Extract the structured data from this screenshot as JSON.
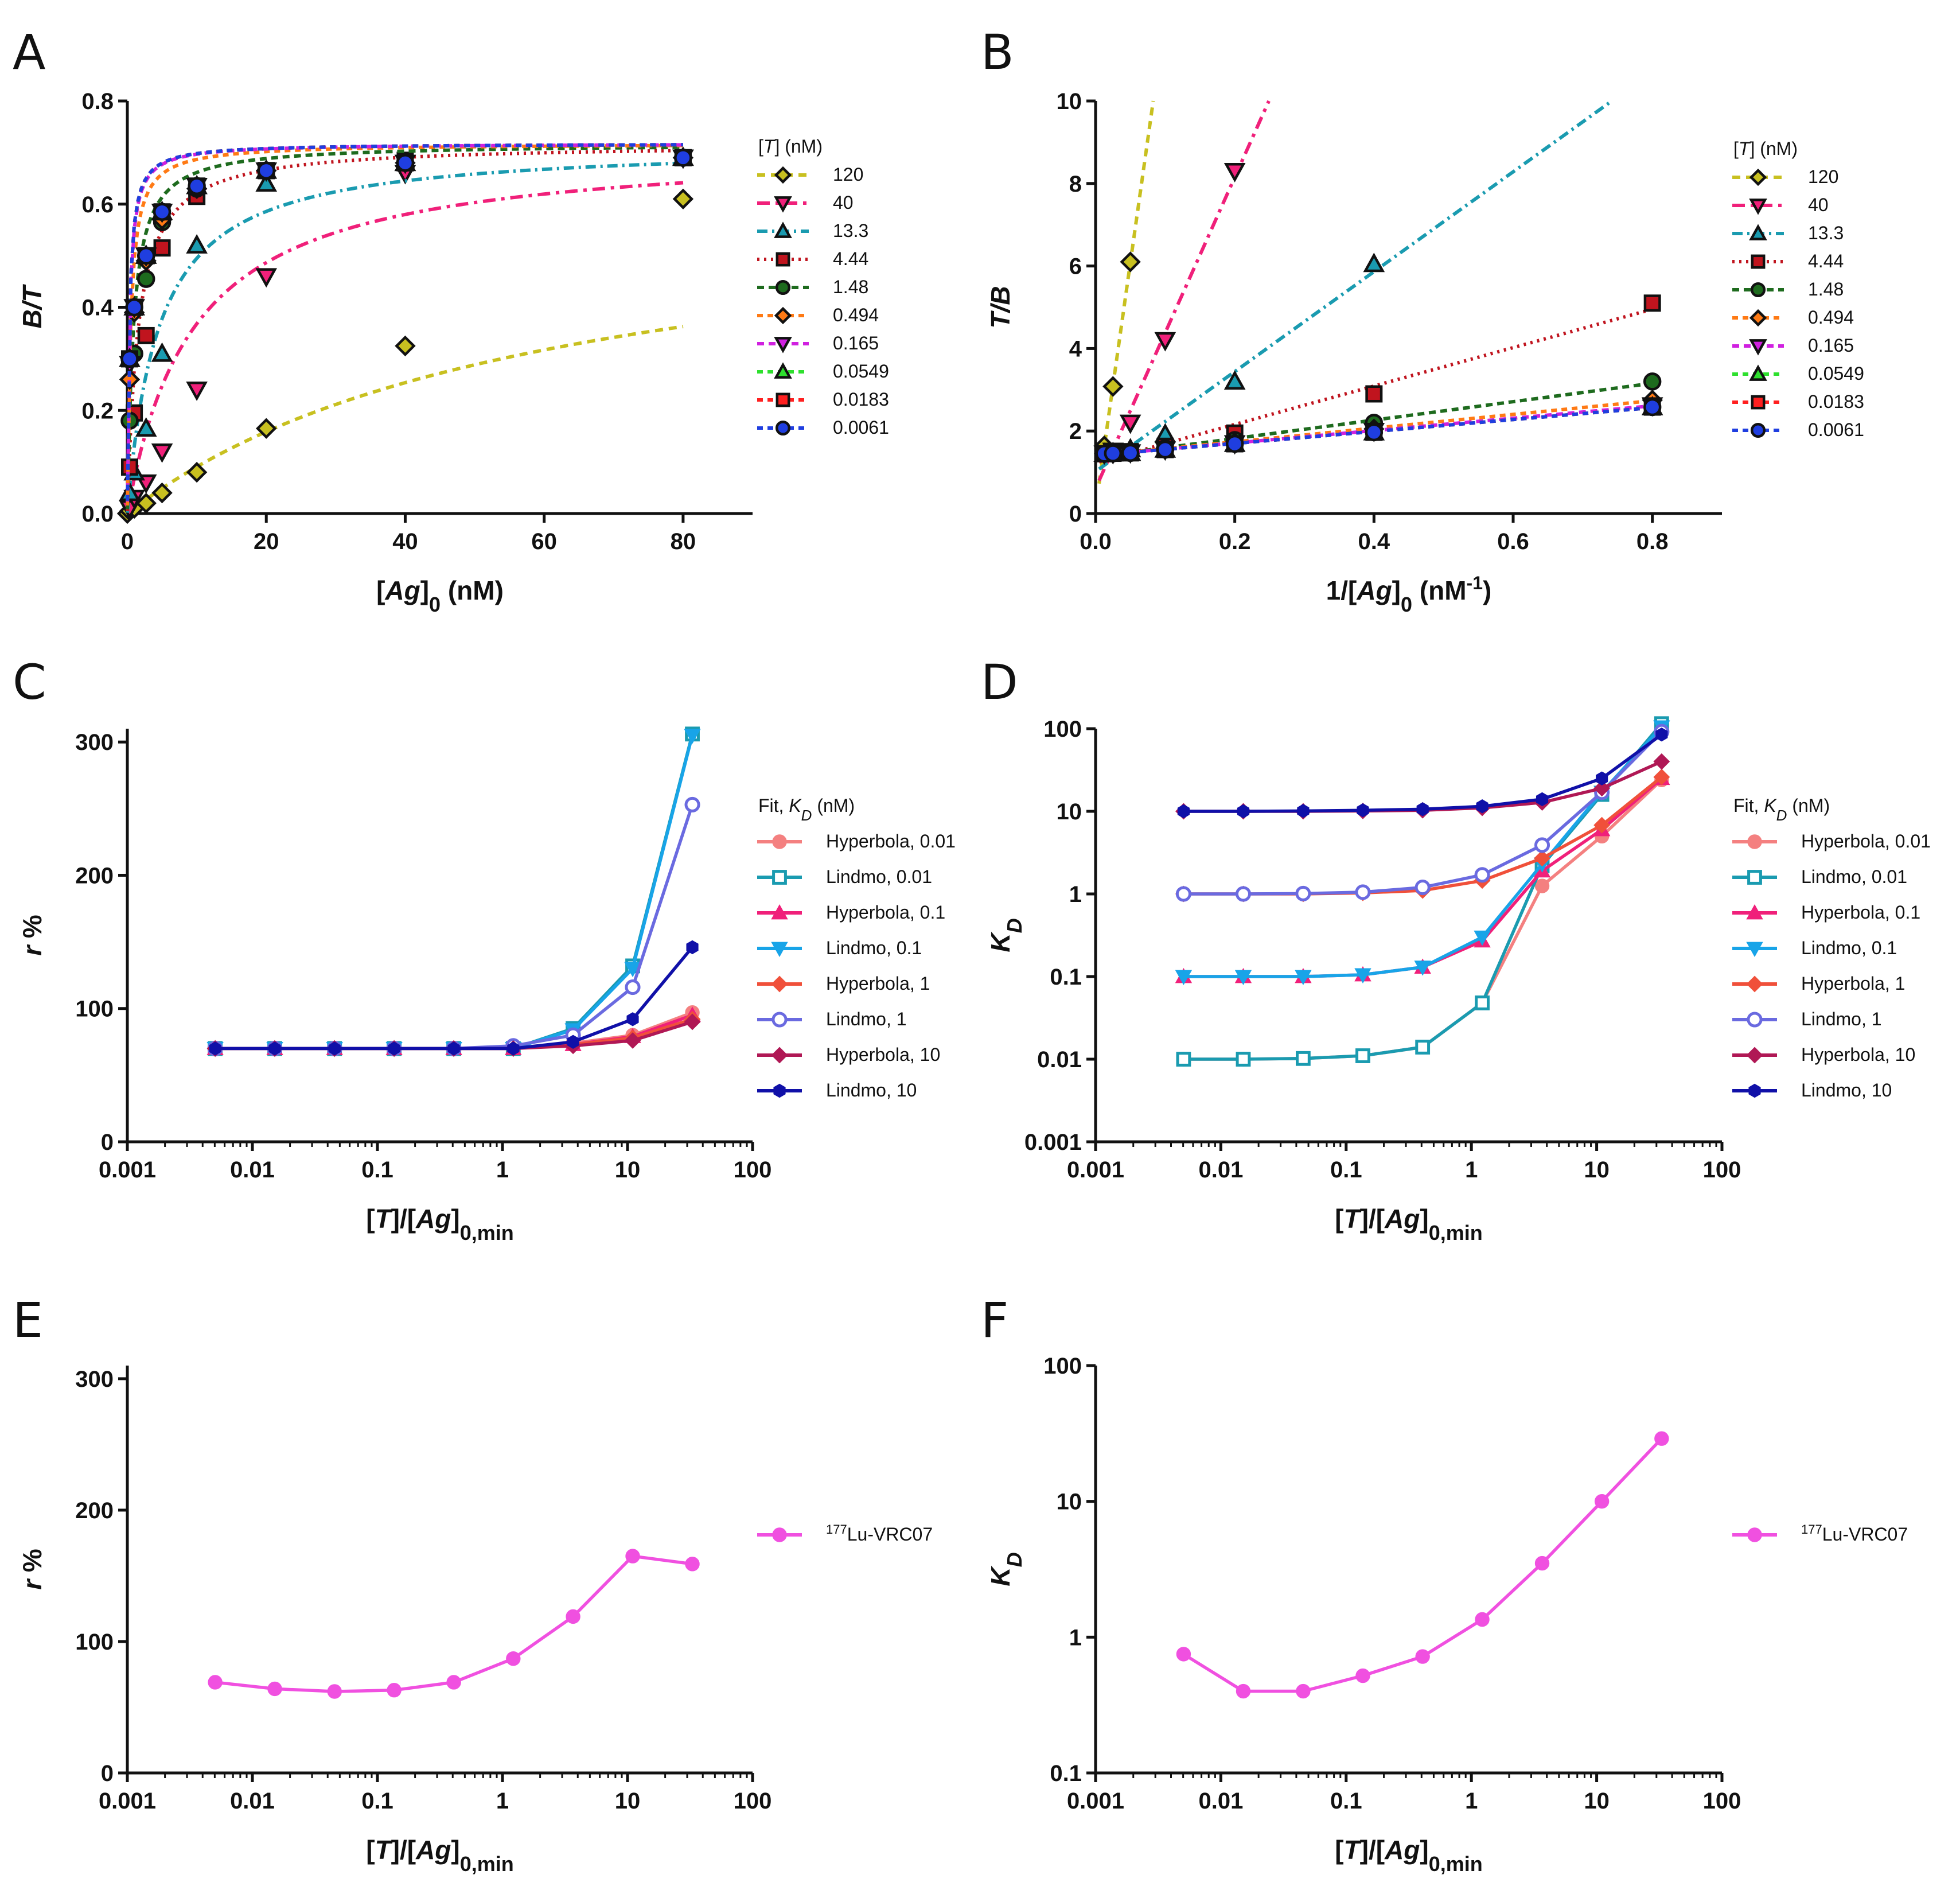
{
  "chart_data": [
    {
      "panel": "A",
      "type": "scatter",
      "xlabel": "[Ag]0 (nM)",
      "ylabel": "B/T",
      "xlim": [
        0,
        90
      ],
      "ylim": [
        0,
        0.8
      ],
      "xticks": [
        0,
        20,
        40,
        60,
        80
      ],
      "yticks": [
        0.0,
        0.2,
        0.4,
        0.6,
        0.8
      ],
      "tick_labels_x": [
        "0",
        "20",
        "40",
        "60",
        "80"
      ],
      "tick_labels_y": [
        "0.0",
        "0.2",
        "0.4",
        "0.6",
        "0.8"
      ],
      "legend_title": "[T] (nM)",
      "series": [
        {
          "name": "120",
          "color": "#c8c020",
          "marker": "diamond",
          "x": [
            0,
            0.33,
            1,
            2.7,
            5,
            10,
            20,
            40,
            80
          ],
          "values": [
            0.0,
            0.005,
            0.01,
            0.02,
            0.04,
            0.08,
            0.165,
            0.325,
            0.61
          ]
        },
        {
          "name": "40",
          "color": "#f0207a",
          "marker": "triangle-down",
          "x": [
            0.33,
            1,
            2.7,
            5,
            10,
            20,
            40,
            80
          ],
          "values": [
            0.01,
            0.03,
            0.06,
            0.12,
            0.24,
            0.46,
            0.66,
            0.69
          ]
        },
        {
          "name": "13.3",
          "color": "#1a9bb0",
          "marker": "triangle-up",
          "x": [
            0.33,
            1,
            2.7,
            5,
            10,
            20,
            40,
            80
          ],
          "values": [
            0.04,
            0.08,
            0.165,
            0.31,
            0.52,
            0.64,
            0.68,
            0.69
          ]
        },
        {
          "name": "4.44",
          "color": "#c0141e",
          "marker": "square",
          "x": [
            0.33,
            1,
            2.7,
            5,
            10,
            20,
            40,
            80
          ],
          "values": [
            0.09,
            0.195,
            0.345,
            0.515,
            0.615,
            0.665,
            0.685,
            0.69
          ]
        },
        {
          "name": "1.48",
          "color": "#1e6b1e",
          "marker": "circle",
          "x": [
            0.33,
            1,
            2.7,
            5,
            10,
            20,
            40,
            80
          ],
          "values": [
            0.18,
            0.31,
            0.455,
            0.565,
            0.63,
            0.665,
            0.68,
            0.69
          ]
        },
        {
          "name": "0.494",
          "color": "#ff7a14",
          "marker": "diamond",
          "x": [
            0.33,
            1,
            2.7,
            5,
            10,
            20,
            40,
            80
          ],
          "values": [
            0.26,
            0.39,
            0.49,
            0.57,
            0.63,
            0.665,
            0.68,
            0.69
          ]
        },
        {
          "name": "0.165",
          "color": "#d020e0",
          "marker": "triangle-down",
          "x": [
            0.33,
            1,
            2.7,
            5,
            10,
            20,
            40,
            80
          ],
          "values": [
            0.29,
            0.4,
            0.5,
            0.585,
            0.635,
            0.665,
            0.68,
            0.69
          ]
        },
        {
          "name": "0.0549",
          "color": "#2ee02e",
          "marker": "triangle-up",
          "x": [
            0.33,
            1,
            2.7,
            5,
            10,
            20,
            40,
            80
          ],
          "values": [
            0.3,
            0.4,
            0.5,
            0.585,
            0.635,
            0.665,
            0.68,
            0.69
          ]
        },
        {
          "name": "0.0183",
          "color": "#ff2020",
          "marker": "square",
          "x": [
            0.33,
            1,
            2.7,
            5,
            10,
            20,
            40,
            80
          ],
          "values": [
            0.3,
            0.4,
            0.5,
            0.585,
            0.635,
            0.665,
            0.68,
            0.69
          ]
        },
        {
          "name": "0.0061",
          "color": "#1f3ee0",
          "marker": "circle",
          "x": [
            0.33,
            1,
            2.7,
            5,
            10,
            20,
            40,
            80
          ],
          "values": [
            0.3,
            0.4,
            0.5,
            0.585,
            0.635,
            0.665,
            0.68,
            0.69
          ]
        }
      ]
    },
    {
      "panel": "B",
      "type": "scatter",
      "xlabel": "1/[Ag]0 (nM-1)",
      "ylabel": "T/B",
      "xlim": [
        0,
        0.9
      ],
      "ylim": [
        0,
        10
      ],
      "xticks": [
        0,
        0.2,
        0.4,
        0.6,
        0.8
      ],
      "yticks": [
        0,
        2,
        4,
        6,
        8,
        10
      ],
      "tick_labels_x": [
        "0.0",
        "0.2",
        "0.4",
        "0.6",
        "0.8"
      ],
      "tick_labels_y": [
        "0",
        "2",
        "4",
        "6",
        "8",
        "10"
      ],
      "legend_title": "[T] (nM)",
      "series": [
        {
          "name": "120",
          "color": "#c8c020",
          "marker": "diamond",
          "x": [
            0.0125,
            0.025,
            0.05
          ],
          "values": [
            1.64,
            3.08,
            6.1
          ]
        },
        {
          "name": "40",
          "color": "#f0207a",
          "marker": "triangle-down",
          "x": [
            0.0125,
            0.025,
            0.05,
            0.1,
            0.2
          ],
          "values": [
            1.45,
            1.52,
            2.2,
            4.2,
            8.3
          ]
        },
        {
          "name": "13.3",
          "color": "#1a9bb0",
          "marker": "triangle-up",
          "x": [
            0.0125,
            0.025,
            0.05,
            0.1,
            0.2,
            0.4
          ],
          "values": [
            1.45,
            1.47,
            1.56,
            1.92,
            3.2,
            6.05
          ]
        },
        {
          "name": "4.44",
          "color": "#c0141e",
          "marker": "square",
          "x": [
            0.0125,
            0.025,
            0.05,
            0.1,
            0.2,
            0.4,
            0.8
          ],
          "values": [
            1.45,
            1.46,
            1.5,
            1.63,
            1.95,
            2.9,
            5.1
          ]
        },
        {
          "name": "1.48",
          "color": "#1e6b1e",
          "marker": "circle",
          "x": [
            0.0125,
            0.025,
            0.05,
            0.1,
            0.2,
            0.4,
            0.8
          ],
          "values": [
            1.45,
            1.46,
            1.48,
            1.58,
            1.78,
            2.2,
            3.2
          ]
        },
        {
          "name": "0.494",
          "color": "#ff7a14",
          "marker": "diamond",
          "x": [
            0.0125,
            0.025,
            0.05,
            0.1,
            0.2,
            0.4,
            0.8
          ],
          "values": [
            1.45,
            1.46,
            1.48,
            1.56,
            1.72,
            2.05,
            2.75
          ]
        },
        {
          "name": "0.165",
          "color": "#d020e0",
          "marker": "triangle-down",
          "x": [
            0.0125,
            0.025,
            0.05,
            0.1,
            0.2,
            0.4,
            0.8
          ],
          "values": [
            1.45,
            1.46,
            1.48,
            1.55,
            1.7,
            2.0,
            2.62
          ]
        },
        {
          "name": "0.0549",
          "color": "#2ee02e",
          "marker": "triangle-up",
          "x": [
            0.0125,
            0.025,
            0.05,
            0.1,
            0.2,
            0.4,
            0.8
          ],
          "values": [
            1.45,
            1.46,
            1.47,
            1.55,
            1.69,
            1.97,
            2.58
          ]
        },
        {
          "name": "0.0183",
          "color": "#ff2020",
          "marker": "square",
          "x": [
            0.0125,
            0.025,
            0.05,
            0.1,
            0.2,
            0.4,
            0.8
          ],
          "values": [
            1.45,
            1.46,
            1.47,
            1.55,
            1.69,
            1.97,
            2.58
          ]
        },
        {
          "name": "0.0061",
          "color": "#1f3ee0",
          "marker": "circle",
          "x": [
            0.0125,
            0.025,
            0.05,
            0.1,
            0.2,
            0.4,
            0.8
          ],
          "values": [
            1.45,
            1.46,
            1.47,
            1.55,
            1.69,
            1.97,
            2.58
          ]
        }
      ]
    },
    {
      "panel": "C",
      "type": "line",
      "xlabel": "[T]/[Ag]0,min",
      "ylabel": "r %",
      "xscale": "log",
      "xlim": [
        0.001,
        100
      ],
      "ylim": [
        0,
        310
      ],
      "xticks": [
        0.001,
        0.01,
        0.1,
        1,
        10,
        100
      ],
      "yticks": [
        0,
        100,
        200,
        300
      ],
      "tick_labels_x": [
        "0.001",
        "0.01",
        "0.1",
        "1",
        "10",
        "100"
      ],
      "tick_labels_y": [
        "0",
        "100",
        "200",
        "300"
      ],
      "legend_title": "Fit, KD (nM)",
      "x": [
        0.00504,
        0.0151,
        0.0454,
        0.136,
        0.408,
        1.22,
        3.67,
        11.0,
        33.0
      ],
      "series": [
        {
          "name": "Hyperbola, 0.01",
          "color": "#f48080",
          "marker": "circle",
          "values": [
            70,
            70,
            70,
            70,
            70,
            70,
            74,
            80,
            97
          ]
        },
        {
          "name": "Lindmo, 0.01",
          "color": "#1a9bb0",
          "marker": "square-open",
          "values": [
            70,
            70,
            70,
            70,
            70,
            70,
            85,
            132,
            306
          ]
        },
        {
          "name": "Hyperbola, 0.1",
          "color": "#f0207a",
          "marker": "triangle-up",
          "values": [
            70,
            70,
            70,
            70,
            70,
            70,
            73,
            79,
            95
          ]
        },
        {
          "name": "Lindmo, 0.1",
          "color": "#18a4e8",
          "marker": "triangle-down",
          "values": [
            70,
            70,
            70,
            70,
            70,
            70,
            84,
            130,
            305
          ]
        },
        {
          "name": "Hyperbola, 1",
          "color": "#f0503a",
          "marker": "diamond",
          "values": [
            70,
            70,
            70,
            70,
            70,
            70,
            73,
            78,
            92
          ]
        },
        {
          "name": "Lindmo, 1",
          "color": "#6a6ae0",
          "marker": "circle-open",
          "values": [
            70,
            70,
            70,
            70,
            70,
            72,
            80,
            116,
            253
          ]
        },
        {
          "name": "Hyperbola, 10",
          "color": "#b01855",
          "marker": "diamond",
          "values": [
            70,
            70,
            70,
            70,
            70,
            70,
            72,
            76,
            90
          ]
        },
        {
          "name": "Lindmo, 10",
          "color": "#1010a8",
          "marker": "hexagon",
          "values": [
            70,
            70,
            70,
            70,
            70,
            70,
            75,
            92,
            146
          ]
        }
      ]
    },
    {
      "panel": "D",
      "type": "line",
      "xlabel": "[T]/[Ag]0,min",
      "ylabel": "KD",
      "xscale": "log",
      "yscale": "log",
      "xlim": [
        0.001,
        100
      ],
      "ylim": [
        0.001,
        100
      ],
      "xticks": [
        0.001,
        0.01,
        0.1,
        1,
        10,
        100
      ],
      "yticks": [
        0.001,
        0.01,
        0.1,
        1,
        10,
        100
      ],
      "tick_labels_x": [
        "0.001",
        "0.01",
        "0.1",
        "1",
        "10",
        "100"
      ],
      "tick_labels_y": [
        "0.001",
        "0.01",
        "0.1",
        "1",
        "10",
        "100"
      ],
      "legend_title": "Fit, KD (nM)",
      "x": [
        0.00504,
        0.0151,
        0.0454,
        0.136,
        0.408,
        1.22,
        3.67,
        11.0,
        33.0
      ],
      "series": [
        {
          "name": "Hyperbola, 0.01",
          "color": "#f48080",
          "marker": "circle",
          "values": [
            0.01,
            0.01,
            0.0102,
            0.011,
            0.014,
            0.048,
            1.25,
            5.0,
            24
          ]
        },
        {
          "name": "Lindmo, 0.01",
          "color": "#1a9bb0",
          "marker": "square-open",
          "values": [
            0.01,
            0.01,
            0.0102,
            0.011,
            0.014,
            0.048,
            2.2,
            16,
            115
          ]
        },
        {
          "name": "Hyperbola, 0.1",
          "color": "#f0207a",
          "marker": "triangle-up",
          "values": [
            0.1,
            0.1,
            0.1,
            0.105,
            0.13,
            0.27,
            1.9,
            6.0,
            25
          ]
        },
        {
          "name": "Lindmo, 0.1",
          "color": "#18a4e8",
          "marker": "triangle-down",
          "values": [
            0.1,
            0.1,
            0.1,
            0.105,
            0.13,
            0.3,
            2.3,
            17,
            105
          ]
        },
        {
          "name": "Hyperbola, 1",
          "color": "#f0503a",
          "marker": "diamond",
          "values": [
            1.0,
            1.0,
            1.0,
            1.03,
            1.1,
            1.45,
            2.7,
            6.8,
            26
          ]
        },
        {
          "name": "Lindmo, 1",
          "color": "#6a6ae0",
          "marker": "circle-open",
          "values": [
            1.0,
            1.0,
            1.01,
            1.05,
            1.2,
            1.7,
            3.9,
            17,
            92
          ]
        },
        {
          "name": "Hyperbola, 10",
          "color": "#b01855",
          "marker": "diamond",
          "values": [
            10,
            10,
            10,
            10.1,
            10.3,
            11,
            12.8,
            19,
            40
          ]
        },
        {
          "name": "Lindmo, 10",
          "color": "#1010a8",
          "marker": "hexagon",
          "values": [
            10,
            10,
            10.1,
            10.3,
            10.6,
            11.5,
            14,
            25,
            85
          ]
        }
      ]
    },
    {
      "panel": "E",
      "type": "line",
      "xlabel": "[T]/[Ag]0,min",
      "ylabel": "r %",
      "xscale": "log",
      "xlim": [
        0.001,
        100
      ],
      "ylim": [
        0,
        310
      ],
      "xticks": [
        0.001,
        0.01,
        0.1,
        1,
        10,
        100
      ],
      "yticks": [
        0,
        100,
        200,
        300
      ],
      "tick_labels_x": [
        "0.001",
        "0.01",
        "0.1",
        "1",
        "10",
        "100"
      ],
      "tick_labels_y": [
        "0",
        "100",
        "200",
        "300"
      ],
      "x": [
        0.00504,
        0.0151,
        0.0454,
        0.136,
        0.408,
        1.22,
        3.67,
        11.0,
        33.0
      ],
      "series": [
        {
          "name": "177Lu-VRC07",
          "color": "#f050e0",
          "marker": "circle",
          "values": [
            69,
            64,
            62,
            63,
            69,
            87,
            119,
            165,
            159
          ]
        }
      ]
    },
    {
      "panel": "F",
      "type": "line",
      "xlabel": "[T]/[Ag]0,min",
      "ylabel": "KD",
      "xscale": "log",
      "yscale": "log",
      "xlim": [
        0.001,
        100
      ],
      "ylim": [
        0.1,
        100
      ],
      "xticks": [
        0.001,
        0.01,
        0.1,
        1,
        10,
        100
      ],
      "yticks": [
        0.1,
        1,
        10,
        100
      ],
      "tick_labels_x": [
        "0.001",
        "0.01",
        "0.1",
        "1",
        "10",
        "100"
      ],
      "tick_labels_y": [
        "0.1",
        "1",
        "10",
        "100"
      ],
      "x": [
        0.00504,
        0.0151,
        0.0454,
        0.136,
        0.408,
        1.22,
        3.67,
        11.0,
        33.0
      ],
      "series": [
        {
          "name": "177Lu-VRC07",
          "color": "#f050e0",
          "marker": "circle",
          "values": [
            0.75,
            0.4,
            0.4,
            0.52,
            0.72,
            1.35,
            3.5,
            10.0,
            29
          ]
        }
      ]
    }
  ]
}
